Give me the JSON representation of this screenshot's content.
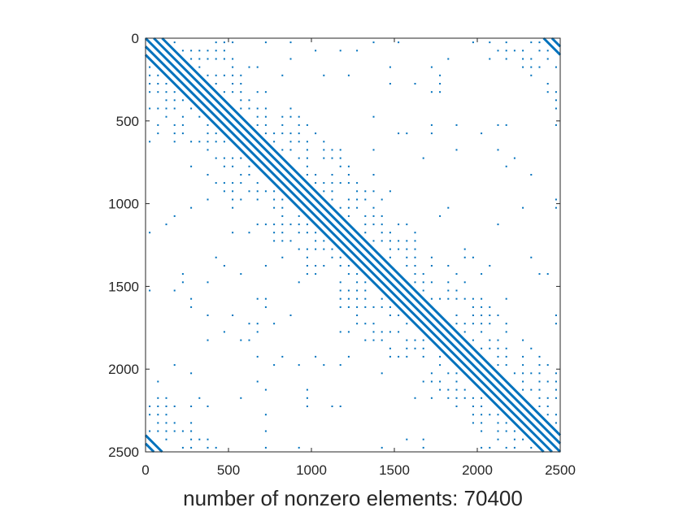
{
  "chart_data": {
    "type": "spy",
    "title": "",
    "xlabel": "number of nonzero elements: 70400",
    "ylabel": "",
    "nnz": 70400,
    "matrix_size": [
      2500,
      2500
    ],
    "xlim": [
      0,
      2500
    ],
    "ylim": [
      2500,
      0
    ],
    "y_axis_direction": "top-to-bottom",
    "x_ticks": [
      0,
      500,
      1000,
      1500,
      2000,
      2500
    ],
    "y_ticks": [
      0,
      500,
      1000,
      1500,
      2000,
      2500
    ],
    "x_tick_labels": [
      "0",
      "500",
      "1000",
      "1500",
      "2000",
      "2500"
    ],
    "y_tick_labels": [
      "0",
      "500",
      "1000",
      "1500",
      "2000",
      "2500"
    ],
    "marker_color": "#0072BD",
    "grid": false,
    "structure": {
      "band_offsets": [
        -100,
        -50,
        0,
        50,
        100
      ],
      "periodic_wrap": true,
      "scatter_grid_spacing": 50,
      "scatter_band_halfwidth": 450
    }
  }
}
